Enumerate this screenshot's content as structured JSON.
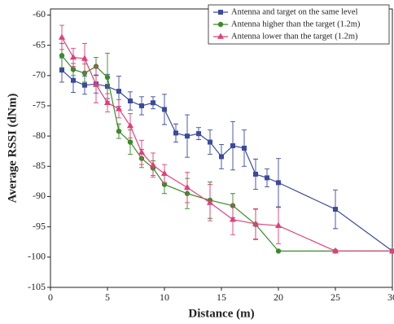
{
  "chart_data": {
    "type": "line",
    "x_label": "Distance (m)",
    "y_label": "Average RSSI (dNm)",
    "xlim": [
      0,
      30
    ],
    "xticks": [
      0,
      5,
      10,
      15,
      20,
      25,
      30
    ],
    "ylim": [
      -105,
      -59
    ],
    "yticks": [
      -105,
      -100,
      -95,
      -90,
      -85,
      -80,
      -75,
      -70,
      -65,
      -60
    ],
    "legend": "top-right",
    "series": [
      {
        "name": "Antenna and target on the same level",
        "color": "#3b4a9e",
        "marker": "square",
        "x": [
          1,
          2,
          3,
          4,
          5,
          6,
          7,
          8,
          9,
          10,
          11,
          12,
          13,
          14,
          15,
          16,
          17,
          18,
          19,
          20,
          25,
          30
        ],
        "values": [
          -69.1,
          -70.8,
          -71.6,
          -71.4,
          -71.8,
          -72.6,
          -74.2,
          -75,
          -74.5,
          -75.6,
          -79.5,
          -80,
          -79.6,
          -81,
          -83.4,
          -81.6,
          -82,
          -86.3,
          -86.9,
          -87.7,
          -92.1,
          -99
        ],
        "errors": [
          2,
          2,
          1.5,
          1.5,
          2,
          2.5,
          1.5,
          1.5,
          1,
          2.5,
          1.5,
          3.5,
          1,
          2,
          2,
          4,
          3,
          2.5,
          1.5,
          4,
          3.2,
          0
        ]
      },
      {
        "name": "Antenna higher than the target (1.2m)",
        "color": "#3a8a2a",
        "marker": "circle",
        "x": [
          1,
          2,
          3,
          4,
          5,
          6,
          7,
          8,
          9,
          10,
          12,
          14,
          16,
          18,
          20,
          25,
          30
        ],
        "values": [
          -66.7,
          -69,
          -69.6,
          -68.5,
          -70.3,
          -79.2,
          -81,
          -83.7,
          -85.3,
          -88,
          -89.5,
          -90.6,
          -91.5,
          -94.6,
          -99,
          -99,
          -99
        ],
        "errors": [
          2,
          1,
          1.5,
          1.5,
          4,
          1.2,
          2,
          1.5,
          1.2,
          1.5,
          2.5,
          3,
          2,
          2.5,
          0,
          0,
          0
        ]
      },
      {
        "name": "Antenna lower than the target (1.2m)",
        "color": "#e0407a",
        "marker": "triangle",
        "x": [
          1,
          2,
          3,
          4,
          5,
          6,
          7,
          8,
          9,
          10,
          12,
          14,
          16,
          18,
          20,
          25,
          30
        ],
        "values": [
          -63.7,
          -67,
          -67.2,
          -71.5,
          -74.5,
          -75.5,
          -78.3,
          -82.7,
          -84.8,
          -86.2,
          -88.5,
          -91,
          -93.8,
          -94.5,
          -94.8,
          -99,
          -99
        ],
        "errors": [
          2,
          1.5,
          2.5,
          3,
          1.5,
          1.5,
          2,
          2,
          2,
          1.5,
          2.5,
          3,
          2.5,
          2.5,
          3,
          0,
          0
        ]
      }
    ]
  }
}
